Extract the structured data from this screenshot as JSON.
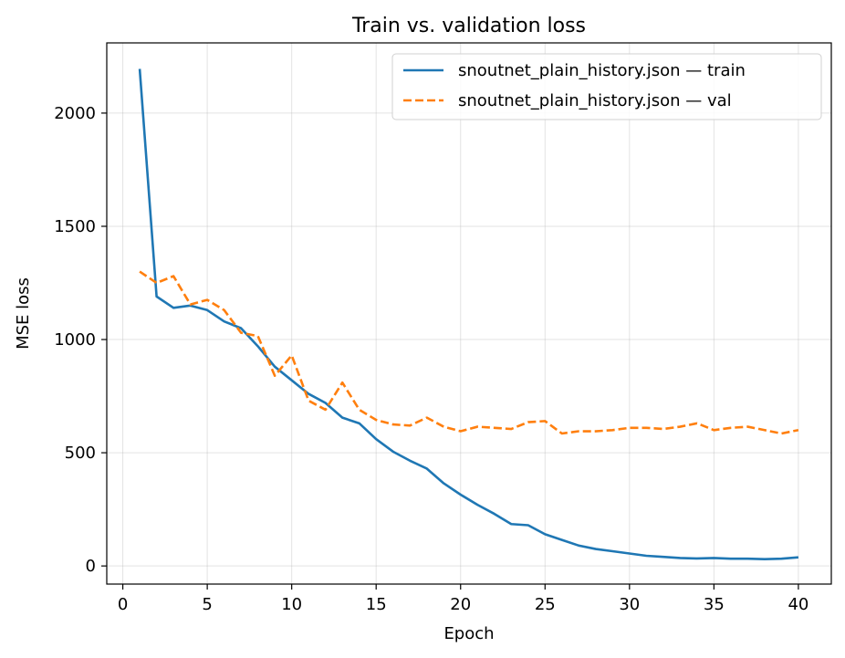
{
  "chart_data": {
    "type": "line",
    "title": "Train vs. validation loss",
    "xlabel": "Epoch",
    "ylabel": "MSE loss",
    "xlim": [
      -0.95,
      41.95
    ],
    "ylim": [
      -80,
      2310
    ],
    "xticks": [
      0,
      5,
      10,
      15,
      20,
      25,
      30,
      35,
      40
    ],
    "yticks": [
      0,
      500,
      1000,
      1500,
      2000
    ],
    "grid": true,
    "legend_position": "top-right",
    "x": [
      1,
      2,
      3,
      4,
      5,
      6,
      7,
      8,
      9,
      10,
      11,
      12,
      13,
      14,
      15,
      16,
      17,
      18,
      19,
      20,
      21,
      22,
      23,
      24,
      25,
      26,
      27,
      28,
      29,
      30,
      31,
      32,
      33,
      34,
      35,
      36,
      37,
      38,
      39,
      40
    ],
    "series": [
      {
        "name": "snoutnet_plain_history.json — train",
        "color": "#1f77b4",
        "style": "solid",
        "values": [
          2195,
          1190,
          1140,
          1150,
          1130,
          1080,
          1050,
          970,
          880,
          820,
          760,
          720,
          655,
          630,
          560,
          505,
          465,
          430,
          365,
          315,
          270,
          230,
          185,
          180,
          140,
          115,
          90,
          75,
          65,
          55,
          45,
          40,
          35,
          33,
          35,
          32,
          32,
          30,
          32,
          38
        ]
      },
      {
        "name": "snoutnet_plain_history.json — val",
        "color": "#ff7f0e",
        "style": "dashed",
        "values": [
          1300,
          1250,
          1280,
          1155,
          1175,
          1130,
          1030,
          1015,
          840,
          930,
          730,
          690,
          810,
          690,
          645,
          625,
          620,
          655,
          615,
          595,
          615,
          610,
          605,
          635,
          640,
          585,
          595,
          595,
          600,
          610,
          610,
          605,
          615,
          630,
          600,
          610,
          615,
          600,
          585,
          600
        ]
      }
    ]
  }
}
